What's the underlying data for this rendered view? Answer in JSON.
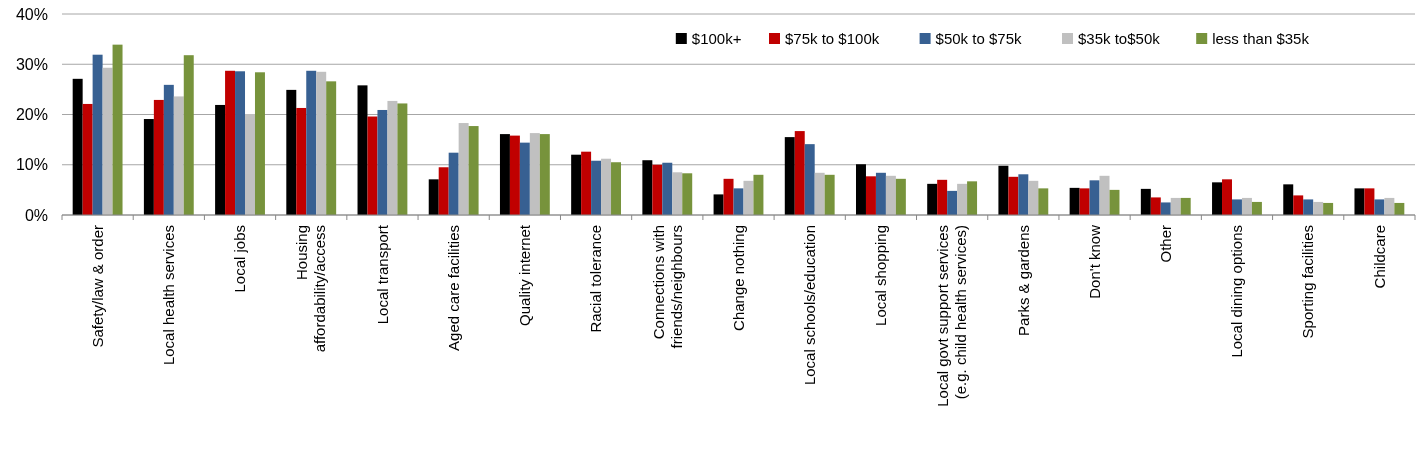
{
  "chart_data": {
    "type": "bar",
    "categories": [
      "Safety/law & order",
      "Local health services",
      "Local jobs",
      "Housing\naffordability/access",
      "Local transport",
      "Aged care facilities",
      "Quality internet",
      "Racial tolerance",
      "Connections with\nfriends/neighbours",
      "Change nothing",
      "Local schools/education",
      "Local shopping",
      "Local govt support services\n(e.g. child health services)",
      "Parks & gardens",
      "Don't know",
      "Other",
      "Local dining options",
      "Sporting facilities",
      "Childcare"
    ],
    "series": [
      {
        "name": "$100k+",
        "color": "#000000",
        "values": [
          27.1,
          19.1,
          21.9,
          24.9,
          25.8,
          7.1,
          16.1,
          12.0,
          10.9,
          4.1,
          15.5,
          10.1,
          6.2,
          9.8,
          5.4,
          5.2,
          6.5,
          6.1,
          5.3
        ]
      },
      {
        "name": "$75k to $100k",
        "color": "#c00000",
        "values": [
          22.1,
          22.9,
          28.7,
          21.3,
          19.6,
          9.5,
          15.8,
          12.6,
          10.0,
          7.2,
          16.7,
          7.7,
          7.0,
          7.6,
          5.3,
          3.5,
          7.1,
          3.9,
          5.3
        ]
      },
      {
        "name": "$50k to $75k",
        "color": "#376092",
        "values": [
          31.9,
          25.9,
          28.6,
          28.7,
          20.9,
          12.4,
          14.4,
          10.8,
          10.4,
          5.3,
          14.1,
          8.4,
          4.8,
          8.1,
          6.9,
          2.5,
          3.1,
          3.1,
          3.1
        ]
      },
      {
        "name": "$35k to$50k",
        "color": "#c0c0c0",
        "values": [
          29.3,
          23.6,
          20.1,
          28.5,
          22.7,
          18.3,
          16.3,
          11.2,
          8.5,
          6.8,
          8.4,
          7.8,
          6.2,
          6.8,
          7.8,
          3.4,
          3.4,
          2.6,
          3.4
        ]
      },
      {
        "name": "less than $35k",
        "color": "#77933c",
        "values": [
          33.9,
          31.8,
          28.4,
          26.6,
          22.2,
          17.7,
          16.1,
          10.5,
          8.3,
          8.0,
          8.0,
          7.2,
          6.7,
          5.3,
          5.0,
          3.4,
          2.6,
          2.4,
          2.4
        ]
      }
    ],
    "ylim": [
      0,
      40
    ],
    "yticks": [
      {
        "value": 0,
        "label": "0%"
      },
      {
        "value": 10,
        "label": "10%"
      },
      {
        "value": 20,
        "label": "20%"
      },
      {
        "value": 30,
        "label": "30%"
      },
      {
        "value": 40,
        "label": "40%"
      }
    ],
    "grid": "y",
    "legend": "top right"
  }
}
